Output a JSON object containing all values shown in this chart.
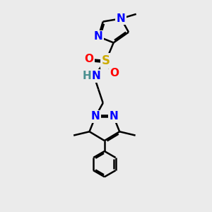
{
  "bg_color": "#ebebeb",
  "atom_colors": {
    "N": "#0000ff",
    "O": "#ff0000",
    "S": "#ccaa00",
    "H": "#4a9090",
    "C": "#000000"
  },
  "bond_color": "#000000",
  "bond_width": 1.8,
  "font_size_atom": 11
}
